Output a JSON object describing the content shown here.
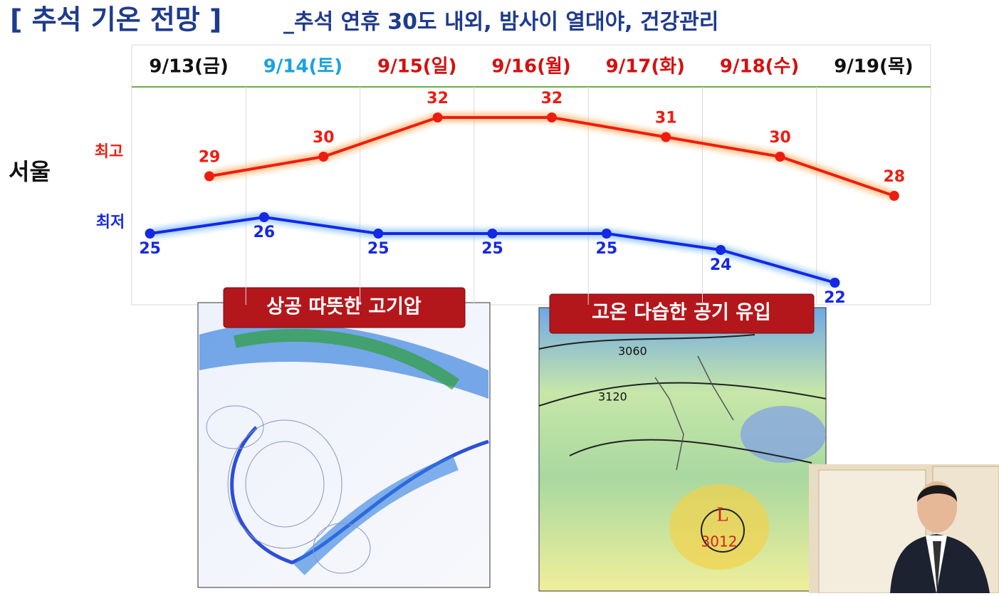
{
  "title": "[ 추석 기온 전망 ]",
  "subtitle": "_추석 연휴 30도 내외, 밤사이 열대야, 건강관리",
  "chart_data": {
    "type": "line",
    "row_label": "서울",
    "categories": [
      "9/13(금)",
      "9/14(토)",
      "9/15(일)",
      "9/16(월)",
      "9/17(화)",
      "9/18(수)",
      "9/19(목)"
    ],
    "category_colors": [
      "#111111",
      "#1aa3e0",
      "#d41010",
      "#d41010",
      "#d41010",
      "#d41010",
      "#111111"
    ],
    "series": [
      {
        "name": "최고",
        "color": "#ee1c10",
        "glow": "#ff9a40",
        "values": [
          29,
          30,
          32,
          32,
          31,
          30,
          28
        ]
      },
      {
        "name": "최저",
        "color": "#1428e6",
        "glow": "#5aa8ff",
        "values": [
          25,
          26,
          25,
          25,
          25,
          24,
          22
        ]
      }
    ]
  },
  "maps": [
    {
      "caption": "상공 따뜻한 고기압"
    },
    {
      "caption": "고온 다습한 공기 유입",
      "labels": [
        "3060",
        "3120",
        "L",
        "3012"
      ]
    }
  ]
}
